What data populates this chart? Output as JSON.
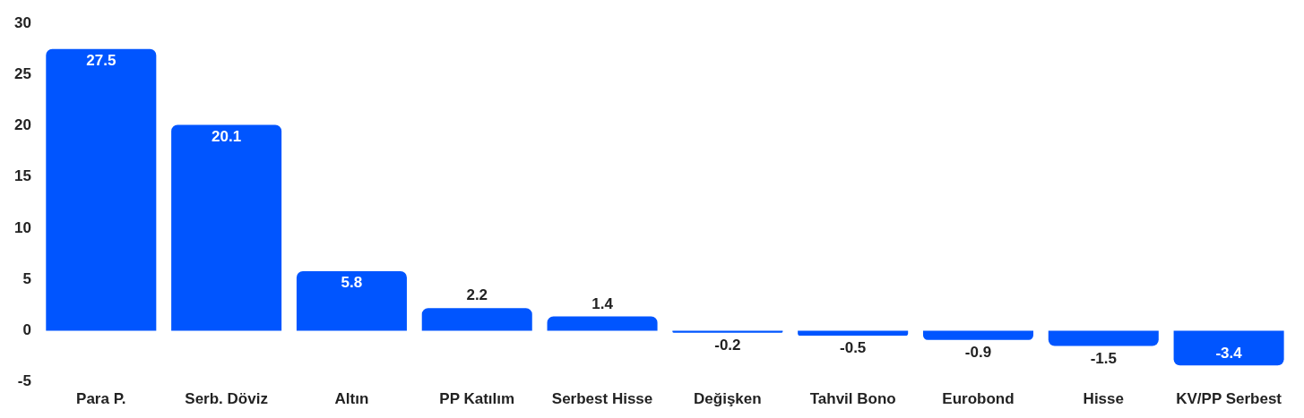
{
  "chart_data": {
    "type": "bar",
    "categories": [
      "Para P.",
      "Serb. Döviz",
      "Altın",
      "PP Katılım",
      "Serbest Hisse",
      "Değişken",
      "Tahvil Bono",
      "Eurobond",
      "Hisse",
      "KV/PP Serbest"
    ],
    "values": [
      27.5,
      20.1,
      5.8,
      2.2,
      1.4,
      -0.2,
      -0.5,
      -0.9,
      -1.5,
      -3.4
    ],
    "color": "#0055ff",
    "ylim": [
      -5,
      30
    ],
    "yticks": [
      -5,
      0,
      5,
      10,
      15,
      20,
      25,
      30
    ],
    "grid": false,
    "legend": false,
    "data_labels": true
  }
}
